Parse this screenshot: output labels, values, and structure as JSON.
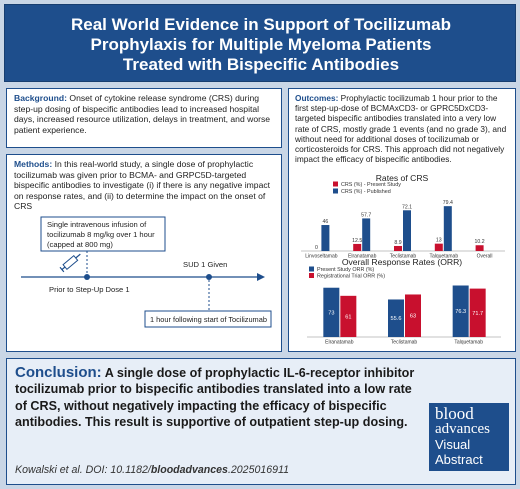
{
  "header": {
    "title_line1": "Real World Evidence in Support of Tocilizumab",
    "title_line2": "Prophylaxis for Multiple Myeloma Patients",
    "title_line3": "Treated with Bispecific Antibodies"
  },
  "background": {
    "label": "Background:",
    "text": "Onset of cytokine release syndrome (CRS) during step-up dosing of bispecific antibodies lead to increased hospital days, increased resource utilization, delays in treatment, and worse patient experience."
  },
  "methods": {
    "label": "Methods:",
    "text": "In this real-world study, a single dose of prophylactic tocilizumab was given prior to BCMA- and GRPC5D-targeted bispecific antibodies to investigate (i) if there is any negative impact on response rates, and (ii) to determine the impact on the onset of CRS",
    "infusion_line1": "Single intravenous infusion of",
    "infusion_line2": "tocilizumab 8 mg/kg over 1 hour",
    "infusion_line3": "(capped at 800 mg)",
    "prior_label": "Prior to Step-Up Dose 1",
    "sud_label": "SUD 1 Given",
    "following_label": "1 hour following start of Tocilizumab"
  },
  "outcomes": {
    "label": "Outcomes:",
    "text": "Prophylactic tocilizumab 1 hour prior to the first step-up-dose of BCMAxCD3- or GPRC5DxCD3-targeted bispecific antibodies translated into a very low rate of CRS, mostly grade 1 events (and no grade 3), and without need for additional doses of tocilizumab or corticosteroids for CRS. This approach did not negatively impact the efficacy of bispecific antibodies."
  },
  "chart_data": [
    {
      "type": "bar",
      "title": "Rates of CRS",
      "categories": [
        "Linvoseltamab",
        "Elranatamab",
        "Teclistamab",
        "Talquetamab",
        "Overall"
      ],
      "series": [
        {
          "name": "CRS (%) - Present Study",
          "values": [
            0,
            12.5,
            8.9,
            13,
            10.2
          ]
        },
        {
          "name": "CRS (%) - Published",
          "values": [
            46,
            57.7,
            72.1,
            79.4,
            null
          ]
        }
      ],
      "ylim": [
        0,
        85
      ],
      "colors": [
        "#c8102e",
        "#1e4e8c"
      ]
    },
    {
      "type": "bar",
      "title": "Overall Response Rates (ORR)",
      "categories": [
        "Elranatamab",
        "Teclistamab",
        "Talquetamab"
      ],
      "series": [
        {
          "name": "Present Study ORR (%)",
          "values": [
            73,
            55.6,
            76.3
          ]
        },
        {
          "name": "Registrational Trial ORR (%)",
          "values": [
            61,
            63,
            71.7
          ]
        }
      ],
      "ylim": [
        0,
        80
      ],
      "colors": [
        "#1e4e8c",
        "#c8102e"
      ]
    }
  ],
  "conclusion": {
    "label": "Conclusion:",
    "text": "A single dose of prophylactic IL-6-receptor inhibitor tocilizumab prior to bispecific antibodies translated into a low rate of CRS, without negatively impacting the efficacy of bispecific antibodies. This result is supportive of outpatient step-up dosing.",
    "citation_prefix": "Kowalski et al. DOI: 10.1182/",
    "citation_journal": "bloodadvances",
    "citation_suffix": ".2025016911"
  },
  "logo": {
    "line1": "blood",
    "line2": "advances",
    "line3": "Visual",
    "line4": "Abstract"
  },
  "colors": {
    "brand_blue": "#1e4e8c",
    "accent_red": "#c8102e"
  }
}
